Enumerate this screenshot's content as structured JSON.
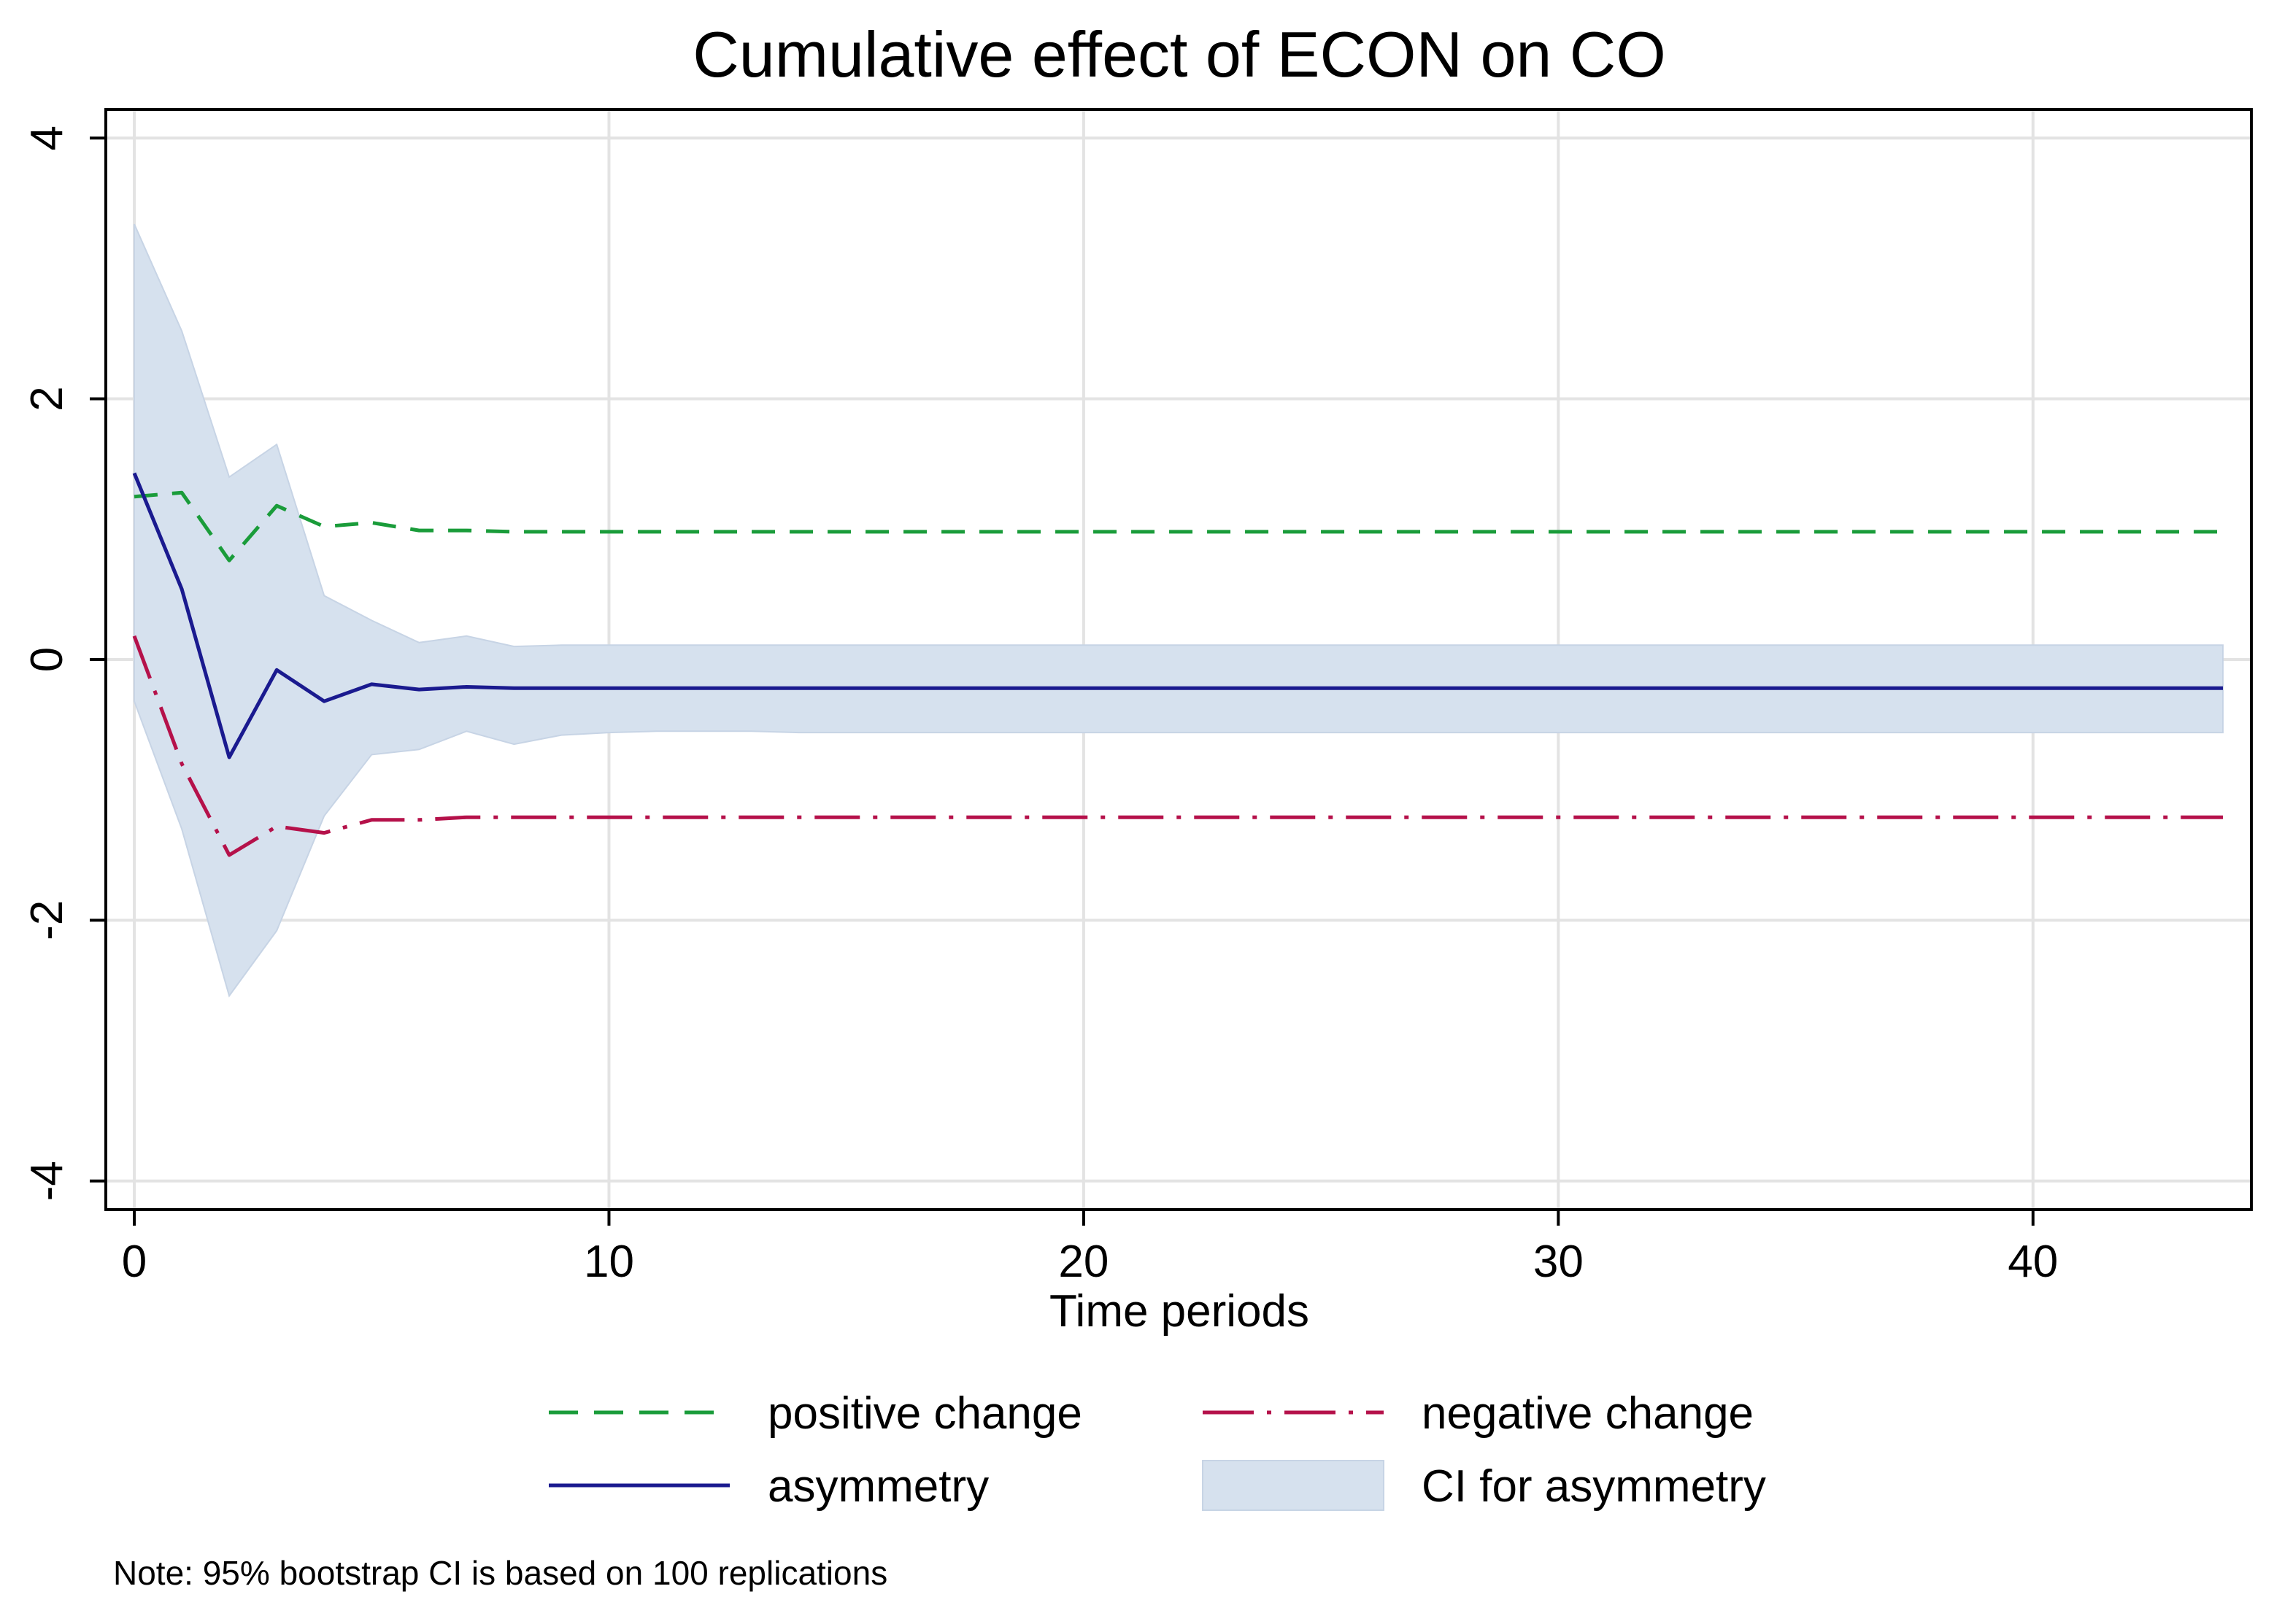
{
  "chart_data": {
    "type": "line",
    "title": "Cumulative effect of ECON on CO",
    "xlabel": "Time periods",
    "ylabel": "",
    "xlim": [
      -0.6,
      44.6
    ],
    "ylim": [
      -4.22,
      4.22
    ],
    "x_ticks": [
      0,
      10,
      20,
      30,
      40
    ],
    "y_ticks": [
      -4,
      -2,
      0,
      2,
      4
    ],
    "x_tick_labels": [
      "0",
      "10",
      "20",
      "30",
      "40"
    ],
    "y_tick_labels": [
      "-4",
      "-2",
      "0",
      "2",
      "4"
    ],
    "grid": true,
    "legend_position": "bottom",
    "note": "Note: 95% bootstrap CI is based on 100 replications",
    "x": [
      0,
      1,
      2,
      3,
      4,
      5,
      6,
      7,
      8,
      9,
      10,
      11,
      12,
      13,
      14,
      15,
      16,
      17,
      18,
      19,
      20,
      21,
      22,
      23,
      24,
      25,
      26,
      27,
      28,
      29,
      30,
      31,
      32,
      33,
      34,
      35,
      36,
      37,
      38,
      39,
      40,
      41,
      42,
      43,
      44
    ],
    "series": [
      {
        "name": "positive change",
        "style": "dash",
        "color": "#1a9c3a",
        "values": [
          1.25,
          1.28,
          0.76,
          1.18,
          1.02,
          1.05,
          0.99,
          0.99,
          0.98,
          0.98,
          0.98,
          0.98,
          0.98,
          0.98,
          0.98,
          0.98,
          0.98,
          0.98,
          0.98,
          0.98,
          0.98,
          0.98,
          0.98,
          0.98,
          0.98,
          0.98,
          0.98,
          0.98,
          0.98,
          0.98,
          0.98,
          0.98,
          0.98,
          0.98,
          0.98,
          0.98,
          0.98,
          0.98,
          0.98,
          0.98,
          0.98,
          0.98,
          0.98,
          0.98,
          0.98
        ]
      },
      {
        "name": "negative change",
        "style": "longdash",
        "color": "#b5114a",
        "values": [
          0.18,
          -0.8,
          -1.5,
          -1.28,
          -1.33,
          -1.23,
          -1.23,
          -1.21,
          -1.21,
          -1.21,
          -1.21,
          -1.21,
          -1.21,
          -1.21,
          -1.21,
          -1.21,
          -1.21,
          -1.21,
          -1.21,
          -1.21,
          -1.21,
          -1.21,
          -1.21,
          -1.21,
          -1.21,
          -1.21,
          -1.21,
          -1.21,
          -1.21,
          -1.21,
          -1.21,
          -1.21,
          -1.21,
          -1.21,
          -1.21,
          -1.21,
          -1.21,
          -1.21,
          -1.21,
          -1.21,
          -1.21,
          -1.21,
          -1.21,
          -1.21,
          -1.21
        ]
      },
      {
        "name": "asymmetry",
        "style": "solid",
        "color": "#1a1a8f",
        "values": [
          1.43,
          0.54,
          -0.75,
          -0.08,
          -0.32,
          -0.19,
          -0.23,
          -0.21,
          -0.22,
          -0.22,
          -0.22,
          -0.22,
          -0.22,
          -0.22,
          -0.22,
          -0.22,
          -0.22,
          -0.22,
          -0.22,
          -0.22,
          -0.22,
          -0.22,
          -0.22,
          -0.22,
          -0.22,
          -0.22,
          -0.22,
          -0.22,
          -0.22,
          -0.22,
          -0.22,
          -0.22,
          -0.22,
          -0.22,
          -0.22,
          -0.22,
          -0.22,
          -0.22,
          -0.22,
          -0.22,
          -0.22,
          -0.22,
          -0.22,
          -0.22,
          -0.22
        ]
      }
    ],
    "ci_band": {
      "name": "CI for asymmetry",
      "color": "#d6e1ee",
      "upper": [
        3.34,
        2.52,
        1.4,
        1.65,
        0.49,
        0.3,
        0.13,
        0.18,
        0.1,
        0.11,
        0.11,
        0.11,
        0.11,
        0.11,
        0.11,
        0.11,
        0.11,
        0.11,
        0.11,
        0.11,
        0.11,
        0.11,
        0.11,
        0.11,
        0.11,
        0.11,
        0.11,
        0.11,
        0.11,
        0.11,
        0.11,
        0.11,
        0.11,
        0.11,
        0.11,
        0.11,
        0.11,
        0.11,
        0.11,
        0.11,
        0.11,
        0.11,
        0.11,
        0.11,
        0.11
      ],
      "lower": [
        -0.32,
        -1.3,
        -2.58,
        -2.08,
        -1.2,
        -0.73,
        -0.69,
        -0.55,
        -0.65,
        -0.58,
        -0.56,
        -0.55,
        -0.55,
        -0.55,
        -0.56,
        -0.56,
        -0.56,
        -0.56,
        -0.56,
        -0.56,
        -0.56,
        -0.56,
        -0.56,
        -0.56,
        -0.56,
        -0.56,
        -0.56,
        -0.56,
        -0.56,
        -0.56,
        -0.56,
        -0.56,
        -0.56,
        -0.56,
        -0.56,
        -0.56,
        -0.56,
        -0.56,
        -0.56,
        -0.56,
        -0.56,
        -0.56,
        -0.56,
        -0.56,
        -0.56
      ]
    },
    "legend": [
      {
        "key": "positive",
        "label": "positive change"
      },
      {
        "key": "negative",
        "label": "negative change"
      },
      {
        "key": "asymmetry",
        "label": "asymmetry"
      },
      {
        "key": "ci",
        "label": "CI for asymmetry"
      }
    ]
  }
}
